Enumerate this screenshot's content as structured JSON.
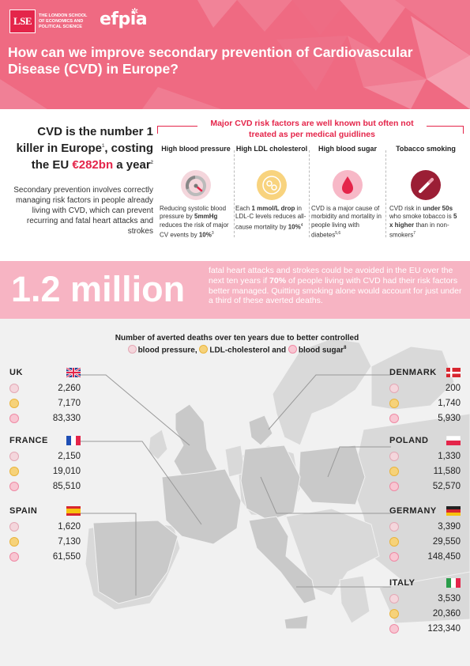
{
  "header": {
    "lse_mark": "LSE",
    "lse_name": "THE LONDON SCHOOL OF ECONOMICS AND POLITICAL SCIENCE",
    "efpia": "efpia",
    "title": "How can we improve secondary prevention of Cardiovascular Disease (CVD) in Europe?"
  },
  "intro": {
    "head_a": "CVD is the number 1 killer in Europe",
    "sup1": "1",
    "head_b": ", costing the EU ",
    "amount": "€282bn",
    "head_c": " a year",
    "sup2": "2",
    "body": "Secondary prevention involves correctly managing risk factors in people already living with CVD, which can prevent recurring and fatal heart attacks and strokes"
  },
  "risk": {
    "title": "Major CVD risk factors are well known but often not treated as per medical guidlines",
    "items": [
      {
        "name": "High blood pressure",
        "icon": "gauge-icon",
        "d1": "Reducing systolic blood pressure by ",
        "b1": "5mmHg",
        "d2": " reduces the risk of major CV events by ",
        "b2": "10%",
        "sup": "3"
      },
      {
        "name": "High LDL cholesterol",
        "icon": "cholesterol-icon",
        "d1": "Each ",
        "b1": "1 mmol/L drop",
        "d2": " in LDL-C levels reduces all-cause mortality by ",
        "b2": "10%",
        "sup": "4"
      },
      {
        "name": "High blood sugar",
        "icon": "blood-drop-icon",
        "d1": "CVD is a major cause of morbidity and mortality in people living with diabetes",
        "b1": "",
        "d2": "",
        "b2": "",
        "sup": "5,6"
      },
      {
        "name": "Tobacco smoking",
        "icon": "cigarette-icon",
        "d1": "CVD risk in ",
        "b1": "under 50s",
        "d2": " who smoke tobacco is ",
        "b2": "5 x higher",
        "d3": " than in non-smokers",
        "sup": "7"
      }
    ]
  },
  "million": {
    "big": "1.2 million",
    "text_a": "fatal heart attacks and strokes could be avoided in the EU over the next ten years if ",
    "text_b": "70%",
    "text_c": " of people living with CVD had their risk factors better managed. Quitting smoking alone would account for just under a third of these averted deaths."
  },
  "map": {
    "title_line1": "Number of averted deaths over ten years due to better controlled",
    "legend_bp": "blood pressure,",
    "legend_ldl": "LDL-cholesterol and",
    "legend_bs": "blood sugar",
    "legend_sup": "8"
  },
  "countries": {
    "uk": {
      "name": "UK",
      "bp": "2,260",
      "ldl": "7,170",
      "bs": "83,330"
    },
    "france": {
      "name": "FRANCE",
      "bp": "2,150",
      "ldl": "19,010",
      "bs": "85,510"
    },
    "spain": {
      "name": "SPAIN",
      "bp": "1,620",
      "ldl": "7,130",
      "bs": "61,550"
    },
    "denmark": {
      "name": "DENMARK",
      "bp": "200",
      "ldl": "1,740",
      "bs": "5,930"
    },
    "poland": {
      "name": "POLAND",
      "bp": "1,330",
      "ldl": "11,580",
      "bs": "52,570"
    },
    "germany": {
      "name": "GERMANY",
      "bp": "3,390",
      "ldl": "29,550",
      "bs": "148,450"
    },
    "italy": {
      "name": "ITALY",
      "bp": "3,530",
      "ldl": "20,360",
      "bs": "123,340"
    }
  },
  "colors": {
    "header_pink": "#ef6a82",
    "accent_red": "#e4254a",
    "band_pink": "#f7b4c3",
    "map_gray": "#d9d9d9",
    "map_highlight": "#c9c9c9"
  }
}
